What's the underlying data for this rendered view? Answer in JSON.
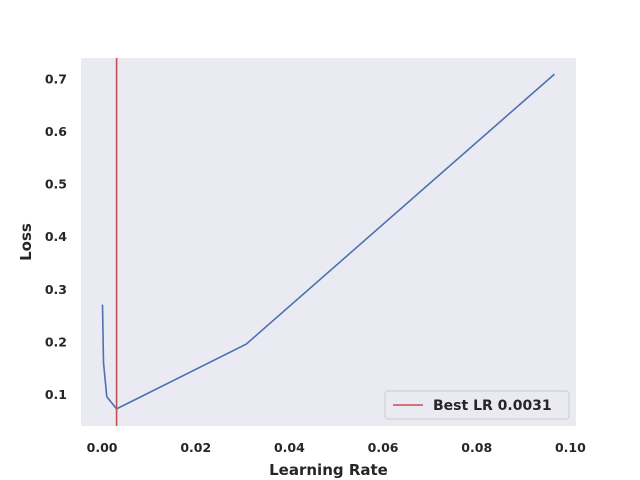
{
  "chart_data": {
    "type": "line",
    "title": "",
    "xlabel": "Learning Rate",
    "ylabel": "Loss",
    "xlim": [
      -0.0045,
      0.1012
    ],
    "ylim": [
      0.0395,
      0.7385
    ],
    "xticks": [
      0.0,
      0.02,
      0.04,
      0.06,
      0.08,
      0.1
    ],
    "xtick_labels": [
      "0.00",
      "0.02",
      "0.04",
      "0.06",
      "0.08",
      "0.10"
    ],
    "yticks": [
      0.1,
      0.2,
      0.3,
      0.4,
      0.5,
      0.6,
      0.7
    ],
    "ytick_labels": [
      "0.1",
      "0.2",
      "0.3",
      "0.4",
      "0.5",
      "0.6",
      "0.7"
    ],
    "grid": false,
    "series": [
      {
        "color": "#4c72b0",
        "x": [
          0.0001,
          0.0003,
          0.001,
          0.0031,
          0.0308,
          0.0966
        ],
        "y": [
          0.27,
          0.16,
          0.095,
          0.072,
          0.195,
          0.708
        ]
      }
    ],
    "vline": {
      "x": 0.0031,
      "color": "#c44e52",
      "label": "Best LR 0.0031"
    },
    "legend": {
      "placement": "lower-right",
      "entries": [
        "Best LR 0.0031"
      ]
    },
    "colors": {
      "plot_background": "#eaeaf2",
      "line": "#4c72b0",
      "vline": "#c44e52"
    }
  }
}
